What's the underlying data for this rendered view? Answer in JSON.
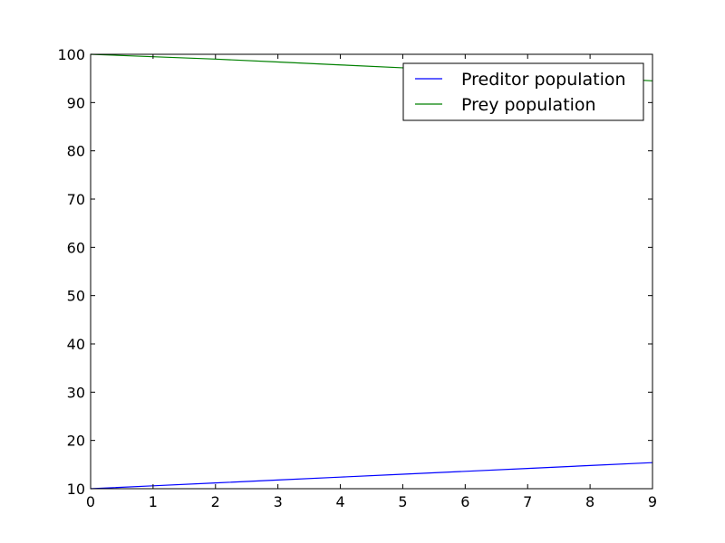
{
  "chart_data": {
    "type": "line",
    "title": "",
    "xlabel": "",
    "ylabel": "",
    "xlim": [
      0,
      9
    ],
    "ylim": [
      10,
      100
    ],
    "xticks": [
      0,
      1,
      2,
      3,
      4,
      5,
      6,
      7,
      8,
      9
    ],
    "yticks": [
      10,
      20,
      30,
      40,
      50,
      60,
      70,
      80,
      90,
      100
    ],
    "grid": false,
    "legend_position": "top-right",
    "x": [
      0,
      1,
      2,
      3,
      4,
      5,
      6,
      7,
      8,
      9
    ],
    "series": [
      {
        "name": "Preditor population",
        "color": "#0000ff",
        "values": [
          10.0,
          10.6,
          11.2,
          11.8,
          12.4,
          13.0,
          13.6,
          14.2,
          14.8,
          15.4
        ]
      },
      {
        "name": "Prey population",
        "color": "#008000",
        "values": [
          100.0,
          99.5,
          99.0,
          98.4,
          97.8,
          97.2,
          96.6,
          95.9,
          95.2,
          94.5
        ]
      }
    ]
  }
}
